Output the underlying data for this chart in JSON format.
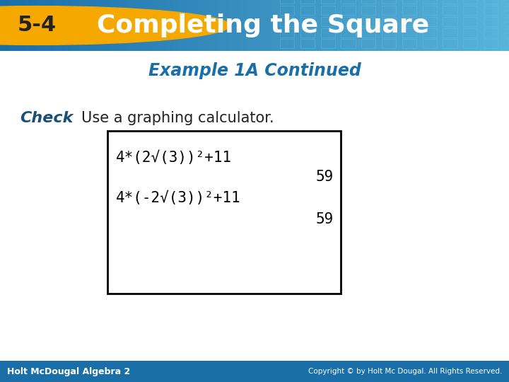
{
  "title_box_text": "Completing the Square",
  "title_number": "5-4",
  "subtitle": "Example 1A Continued",
  "check_label": "Check",
  "check_text": "Use a graphing calculator.",
  "header_bg_color": "#1a6fa8",
  "header_bg_color2": "#5ab3d9",
  "number_bg_color": "#f5a800",
  "title_text_color": "#ffffff",
  "subtitle_color": "#1a6fa8",
  "check_label_color": "#1a5075",
  "body_bg_color": "#ffffff",
  "footer_bg_color": "#1a6fa8",
  "footer_left": "Holt McDougal Algebra 2",
  "footer_right": "Copyright © by Holt Mc Dougal. All Rights Reserved.",
  "calc_line1": "4*(2√(3))²+11",
  "calc_result1": "59",
  "calc_line2": "4*(-2√(3))²+11",
  "calc_result2": "59",
  "grid_color": "#b0cce0"
}
